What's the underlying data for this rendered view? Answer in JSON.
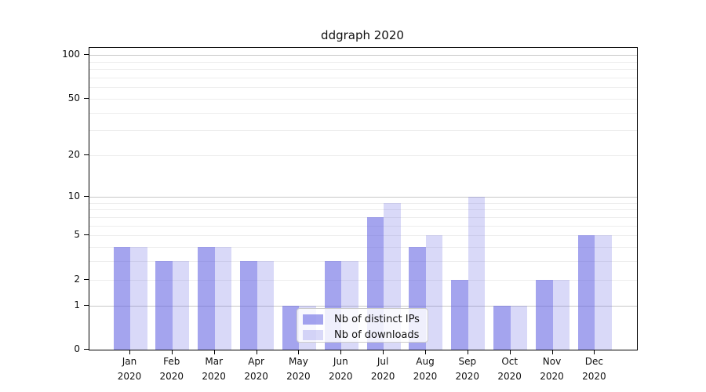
{
  "figure": {
    "background": "#ffffff",
    "spine_color": "#000000"
  },
  "chart_data": {
    "type": "bar",
    "title": "ddgraph 2020",
    "categories": [
      "Jan 2020",
      "Feb 2020",
      "Mar 2020",
      "Apr 2020",
      "May 2020",
      "Jun 2020",
      "Jul 2020",
      "Aug 2020",
      "Sep 2020",
      "Oct 2020",
      "Nov 2020",
      "Dec 2020"
    ],
    "series": [
      {
        "name": "Nb of distinct IPs",
        "color": "rgba(95,95,225,0.57)",
        "values": [
          4,
          3,
          4,
          3,
          1,
          3,
          7,
          4,
          2,
          1,
          2,
          5
        ]
      },
      {
        "name": "Nb of downloads",
        "color": "rgba(95,95,225,0.24)",
        "values": [
          4,
          3,
          4,
          3,
          1,
          3,
          9,
          5,
          10,
          1,
          2,
          5
        ]
      }
    ],
    "y_axis": {
      "scale": "log1p",
      "ticks": [
        0,
        1,
        2,
        5,
        10,
        20,
        50,
        100
      ],
      "ylim": [
        0,
        113
      ]
    },
    "gridlines": {
      "major": [
        1,
        10,
        100
      ],
      "minor": [
        2,
        3,
        4,
        5,
        6,
        7,
        8,
        9,
        20,
        30,
        40,
        50,
        60,
        70,
        80,
        90
      ],
      "major_color": "#c8c8c8",
      "minor_color": "#ededed",
      "grid": "on"
    },
    "legend": {
      "position": "lower center (inside plot)"
    }
  }
}
